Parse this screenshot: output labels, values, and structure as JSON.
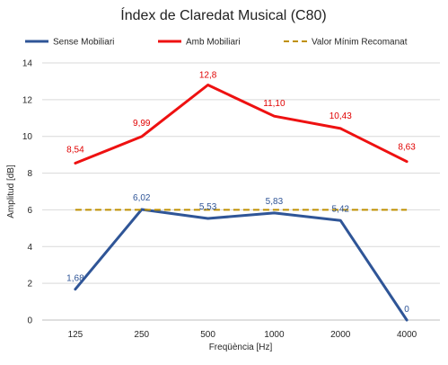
{
  "chart_data": {
    "type": "line",
    "title": "Índex de Claredat Musical (C80)",
    "xlabel": "Freqüència [Hz]",
    "ylabel": "Amplitud [dB]",
    "categories": [
      "125",
      "250",
      "500",
      "1000",
      "2000",
      "4000"
    ],
    "yticks": [
      "0",
      "2",
      "4",
      "6",
      "8",
      "10",
      "12",
      "14"
    ],
    "ylim": [
      0,
      14
    ],
    "grid": true,
    "legend_position": "top",
    "series": [
      {
        "name": "Sense Mobiliari",
        "color": "#2f5597",
        "style": "solid",
        "values": [
          1.68,
          6.02,
          5.53,
          5.83,
          5.42,
          0
        ],
        "labels": [
          "1,68",
          "6,02",
          "5,53",
          "5,83",
          "5,42",
          "0"
        ]
      },
      {
        "name": "Amb Mobiliari",
        "color": "#ee1111",
        "style": "solid",
        "values": [
          8.54,
          9.99,
          12.8,
          11.1,
          10.43,
          8.63
        ],
        "labels": [
          "8,54",
          "9,99",
          "12,8",
          "11,10",
          "10,43",
          "8,63"
        ]
      },
      {
        "name": "Valor Mínim Recomanat",
        "color": "#bf9000",
        "style": "dashed",
        "values": [
          6,
          6,
          6,
          6,
          6,
          6
        ],
        "labels": []
      }
    ]
  }
}
